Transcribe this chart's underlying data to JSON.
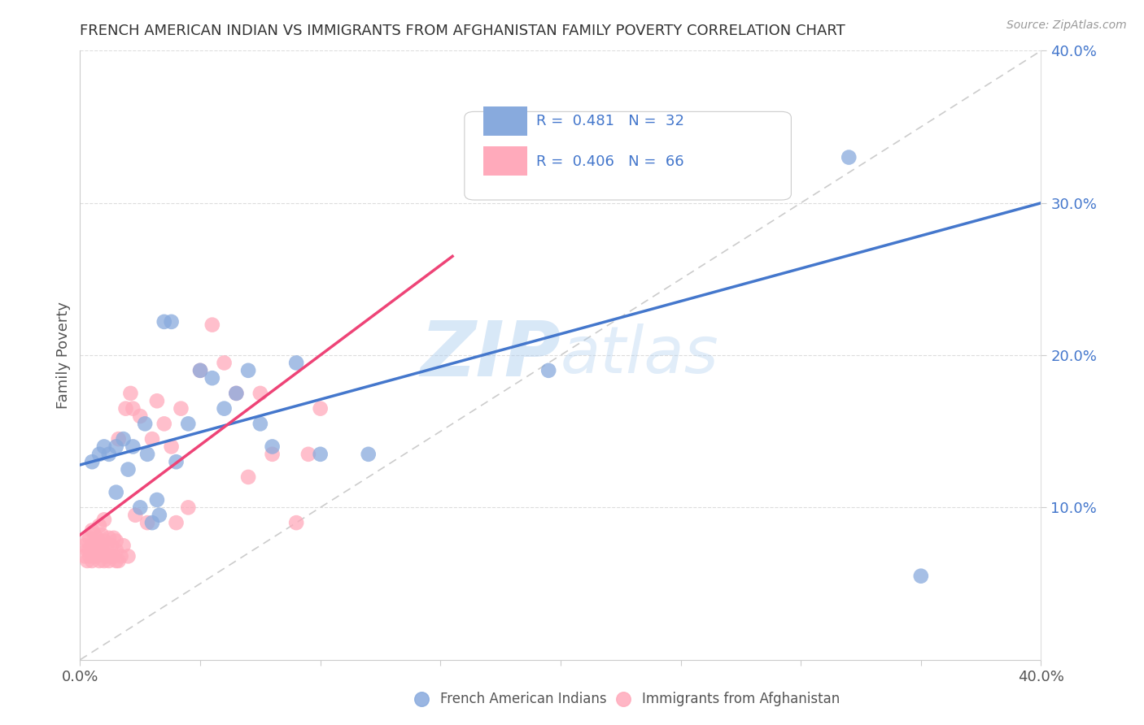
{
  "title": "FRENCH AMERICAN INDIAN VS IMMIGRANTS FROM AFGHANISTAN FAMILY POVERTY CORRELATION CHART",
  "source": "Source: ZipAtlas.com",
  "ylabel": "Family Poverty",
  "xlim": [
    0.0,
    0.4
  ],
  "ylim": [
    0.0,
    0.4
  ],
  "ytick_positions": [
    0.1,
    0.2,
    0.3,
    0.4
  ],
  "ytick_labels": [
    "10.0%",
    "20.0%",
    "30.0%",
    "40.0%"
  ],
  "legend_label1": "French American Indians",
  "legend_label2": "Immigrants from Afghanistan",
  "scatter_blue_x": [
    0.005,
    0.008,
    0.01,
    0.012,
    0.015,
    0.015,
    0.018,
    0.02,
    0.022,
    0.025,
    0.027,
    0.028,
    0.03,
    0.032,
    0.033,
    0.035,
    0.038,
    0.04,
    0.045,
    0.05,
    0.055,
    0.06,
    0.065,
    0.07,
    0.075,
    0.08,
    0.09,
    0.1,
    0.12,
    0.195,
    0.32,
    0.35
  ],
  "scatter_blue_y": [
    0.13,
    0.135,
    0.14,
    0.135,
    0.14,
    0.11,
    0.145,
    0.125,
    0.14,
    0.1,
    0.155,
    0.135,
    0.09,
    0.105,
    0.095,
    0.222,
    0.222,
    0.13,
    0.155,
    0.19,
    0.185,
    0.165,
    0.175,
    0.19,
    0.155,
    0.14,
    0.195,
    0.135,
    0.135,
    0.19,
    0.33,
    0.055
  ],
  "scatter_pink_x": [
    0.002,
    0.002,
    0.003,
    0.003,
    0.003,
    0.004,
    0.004,
    0.004,
    0.005,
    0.005,
    0.005,
    0.005,
    0.006,
    0.006,
    0.006,
    0.007,
    0.007,
    0.007,
    0.008,
    0.008,
    0.008,
    0.009,
    0.009,
    0.01,
    0.01,
    0.01,
    0.01,
    0.011,
    0.011,
    0.012,
    0.012,
    0.013,
    0.013,
    0.014,
    0.014,
    0.015,
    0.015,
    0.015,
    0.016,
    0.016,
    0.017,
    0.018,
    0.019,
    0.02,
    0.021,
    0.022,
    0.023,
    0.025,
    0.028,
    0.03,
    0.032,
    0.035,
    0.038,
    0.04,
    0.042,
    0.045,
    0.05,
    0.055,
    0.06,
    0.065,
    0.07,
    0.075,
    0.08,
    0.09,
    0.095,
    0.1
  ],
  "scatter_pink_y": [
    0.075,
    0.068,
    0.072,
    0.078,
    0.065,
    0.08,
    0.072,
    0.068,
    0.065,
    0.07,
    0.075,
    0.085,
    0.068,
    0.075,
    0.082,
    0.068,
    0.074,
    0.08,
    0.065,
    0.072,
    0.088,
    0.075,
    0.082,
    0.065,
    0.07,
    0.078,
    0.092,
    0.068,
    0.075,
    0.065,
    0.08,
    0.068,
    0.075,
    0.068,
    0.08,
    0.065,
    0.072,
    0.078,
    0.065,
    0.145,
    0.068,
    0.075,
    0.165,
    0.068,
    0.175,
    0.165,
    0.095,
    0.16,
    0.09,
    0.145,
    0.17,
    0.155,
    0.14,
    0.09,
    0.165,
    0.1,
    0.19,
    0.22,
    0.195,
    0.175,
    0.12,
    0.175,
    0.135,
    0.09,
    0.135,
    0.165
  ],
  "blue_color": "#88AADD",
  "pink_color": "#FFAABB",
  "blue_line_color": "#4477CC",
  "pink_line_color": "#EE4477",
  "diagonal_color": "#CCCCCC",
  "watermark_color": "#AACCEE",
  "background_color": "#FFFFFF",
  "grid_color": "#DDDDDD",
  "blue_line_x": [
    0.0,
    0.4
  ],
  "blue_line_y": [
    0.128,
    0.3
  ],
  "pink_line_x": [
    0.0,
    0.155
  ],
  "pink_line_y": [
    0.082,
    0.265
  ]
}
